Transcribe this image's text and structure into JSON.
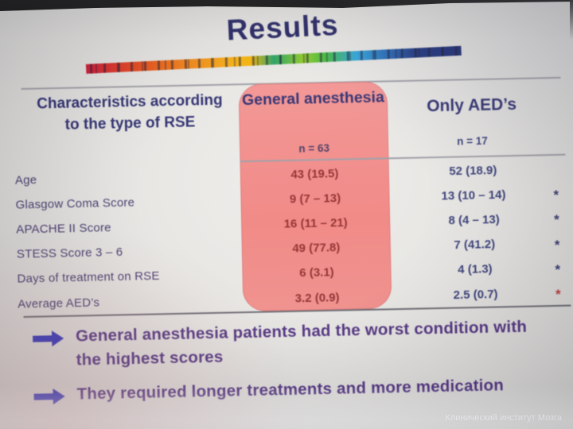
{
  "slide": {
    "title": "Results",
    "table": {
      "col1_header": "Characteristics according to the type of RSE",
      "col2_header": "General anesthesia",
      "col2_n": "n = 63",
      "col3_header": "Only AED’s",
      "col3_n": "n = 17",
      "rows": [
        {
          "label": "Age",
          "ga": "43 (19.5)",
          "aed": "52 (18.9)",
          "sig": ""
        },
        {
          "label": "Glasgow Coma Score",
          "ga": "9 (7 – 13)",
          "aed": "13 (10 – 14)",
          "sig": "*"
        },
        {
          "label": "APACHE II Score",
          "ga": "16 (11 – 21)",
          "aed": "8 (4 – 13)",
          "sig": "*"
        },
        {
          "label": "STESS Score 3 – 6",
          "ga": "49 (77.8)",
          "aed": "7 (41.2)",
          "sig": "*"
        },
        {
          "label": "Days of treatment on RSE",
          "ga": "6 (3.1)",
          "aed": "4 (1.3)",
          "sig": "*"
        },
        {
          "label": "Average AED’s",
          "ga": "3.2 (0.9)",
          "aed": "2.5 (0.7)",
          "sig": "*"
        }
      ]
    },
    "bullets": [
      "General anesthesia patients had the worst condition with the highest scores",
      "They required longer treatments and more medication"
    ],
    "footer": "Клинический институт Мозга",
    "colors": {
      "title-navy": "#20205f",
      "header-navy": "#26266a",
      "label-purple": "#3f3166",
      "value-maroon": "#8c2626",
      "value-navy": "#303672",
      "pink-box": "#f0827f",
      "bullet-purple": "#4a2a7a",
      "arrow-blue": "#2829b2",
      "asterisk-navy": "#2e3068",
      "asterisk-red": "#b43030",
      "rule-gray": "#9a9aa2",
      "footer-white": "#fafafc"
    }
  }
}
